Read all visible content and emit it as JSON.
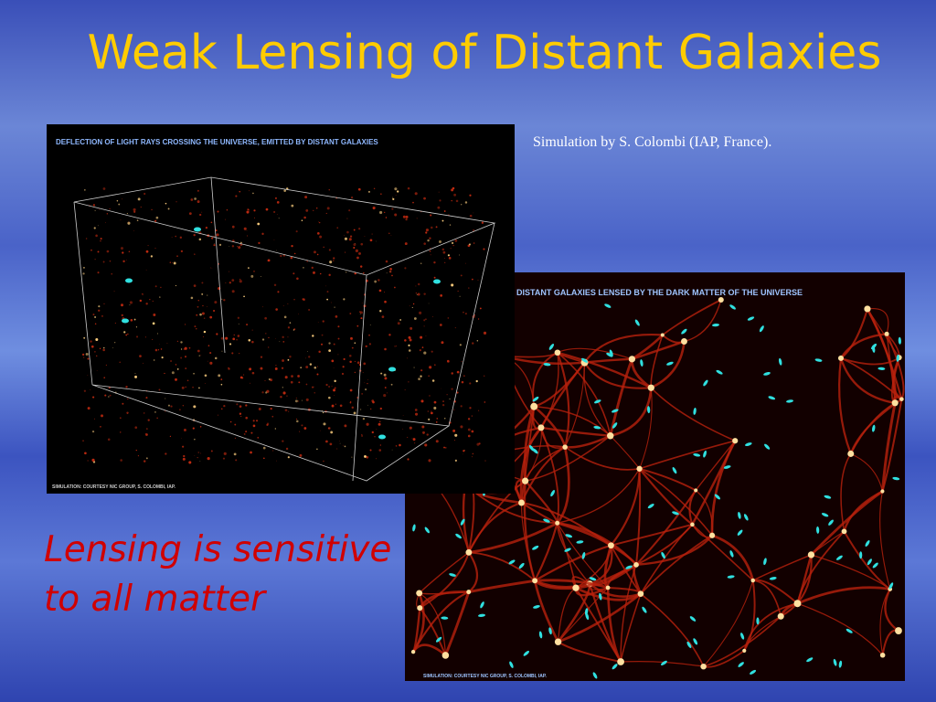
{
  "slide": {
    "title": "Weak Lensing of Distant Galaxies",
    "caption": "Simulation by S. Colombi (IAP, France).",
    "body_lines": [
      "Lensing is sensitive",
      "to all matter"
    ],
    "image_1": {
      "heading": "DEFLECTION  OF  LIGHT RAYS  CROSSING   THE UNIVERSE, EMITTED BY  DISTANT GALAXIES",
      "credit": "SIMULATION: COURTESY NIC GROUP,   S.  COLOMBI,  IAP."
    },
    "image_2": {
      "heading": "DISTANT  GALAXIES  LENSED  BY  THE DARK MATTER  OF  THE UNIVERSE",
      "credit": "SIMULATION:  COURTESY  NIC GROUP,  S.  COLOMBI,  IAP."
    }
  }
}
